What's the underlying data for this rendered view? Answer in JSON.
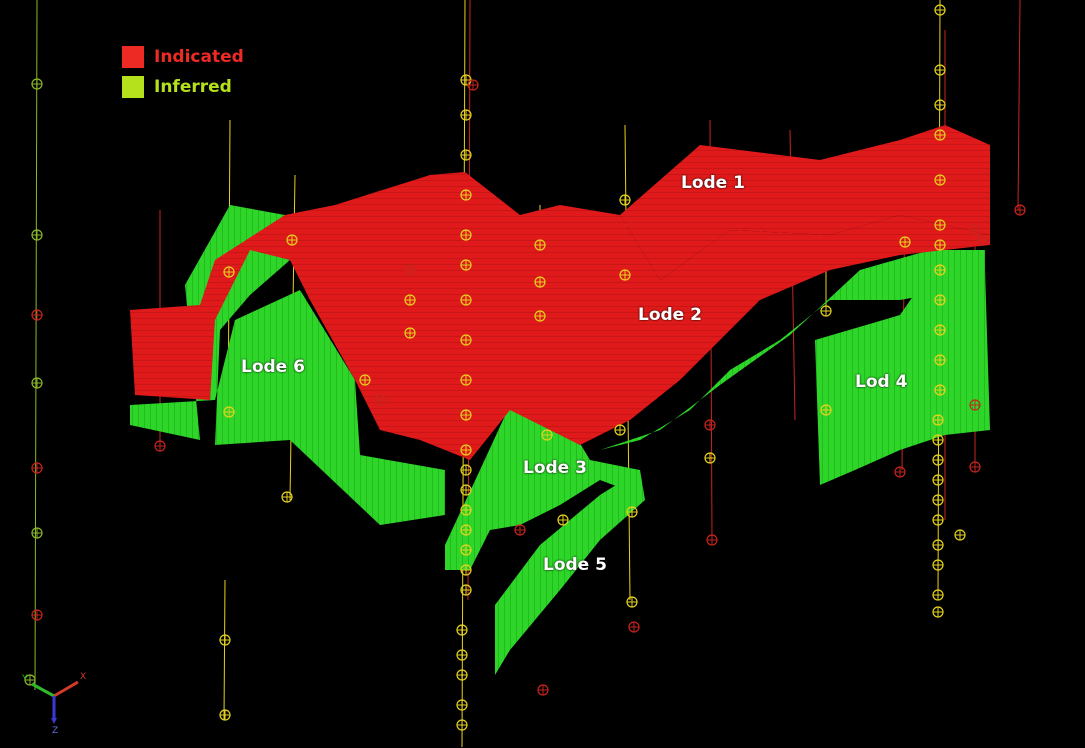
{
  "legend": {
    "items": [
      {
        "label": "Indicated",
        "color": "#ee2a24"
      },
      {
        "label": "Inferred",
        "color": "#b5e11c"
      }
    ]
  },
  "lodes": [
    {
      "label": "Lode 1"
    },
    {
      "label": "Lode 2"
    },
    {
      "label": "Lode 3"
    },
    {
      "label": "Lod 4"
    },
    {
      "label": "Lode 5"
    },
    {
      "label": "Lode 6"
    }
  ],
  "axes": {
    "x": "X",
    "y": "Y",
    "z": "Z"
  },
  "colors": {
    "indicated": "#e01a1a",
    "inferred": "#2fd62a",
    "drillhole_yellow": "#e6d21e",
    "drillhole_red": "#c8241e",
    "background": "#000000"
  },
  "icons": [
    "drillhole-collar-icon",
    "axis-triad-icon"
  ]
}
